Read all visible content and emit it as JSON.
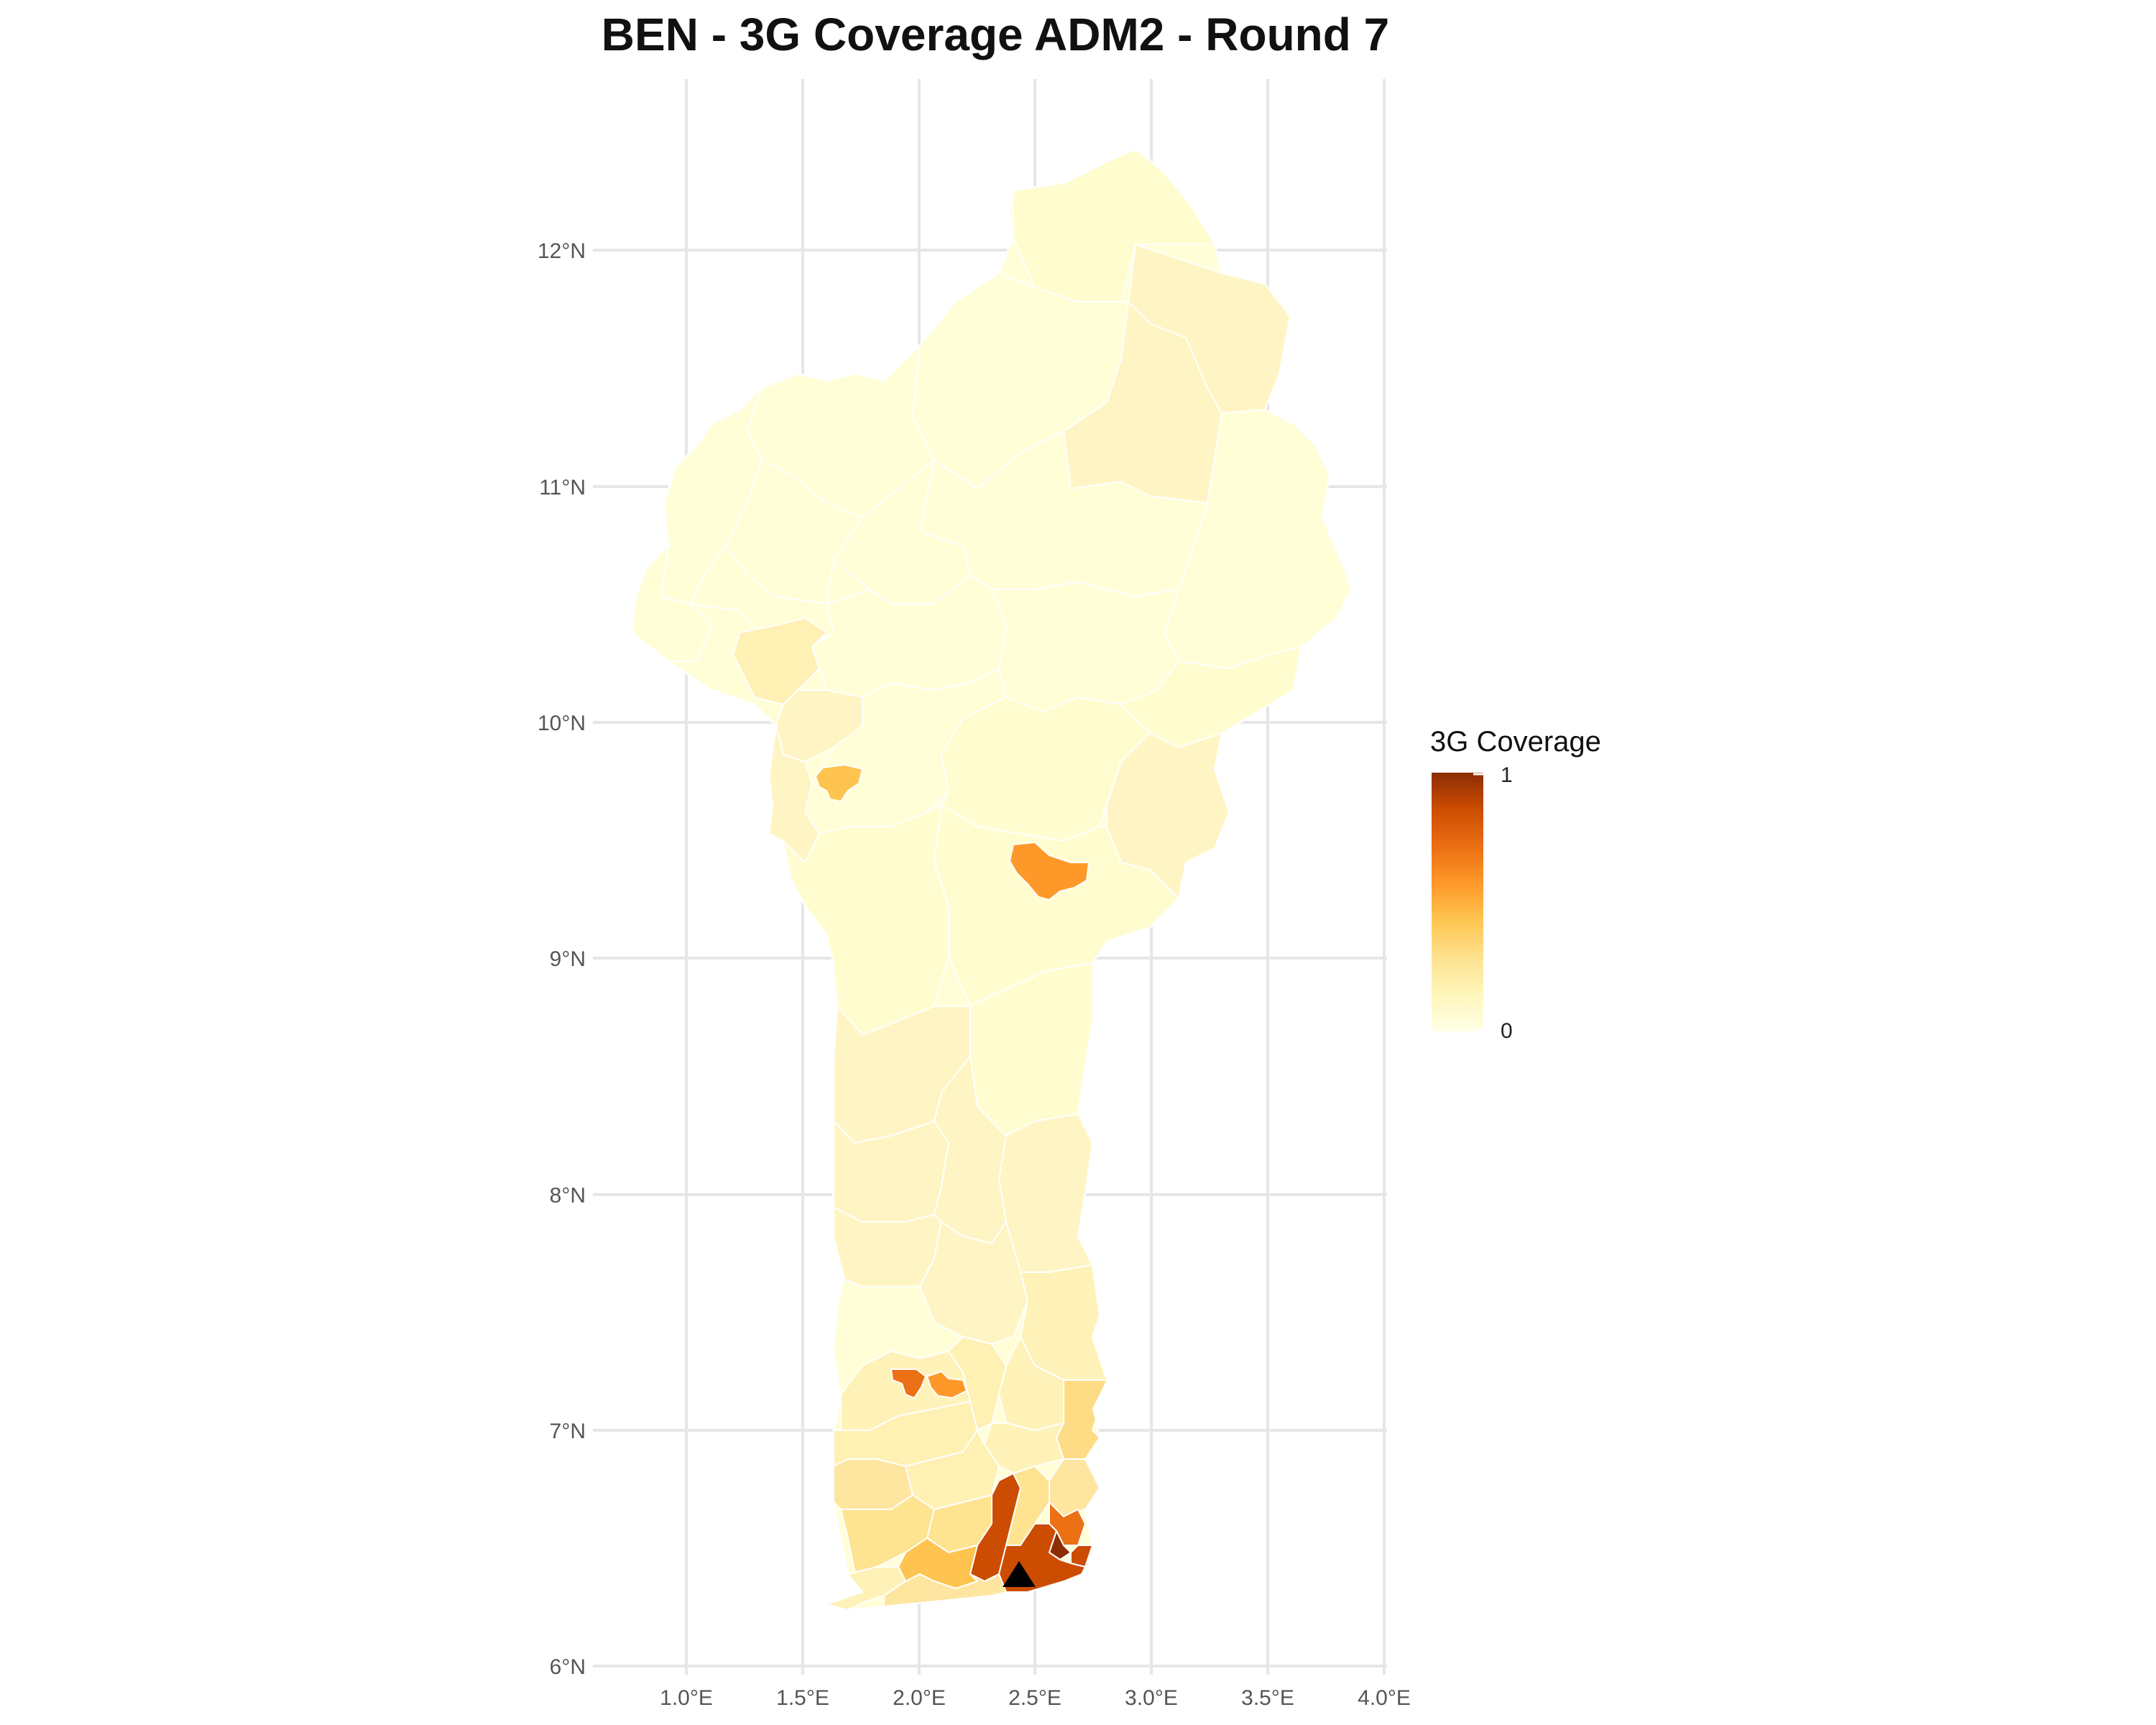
{
  "title": "BEN - 3G Coverage ADM2 - Round 7",
  "x_ticks": [
    "1.0°E",
    "1.5°E",
    "2.0°E",
    "2.5°E",
    "3.0°E",
    "3.5°E",
    "4.0°E"
  ],
  "y_ticks": [
    "12°N",
    "11°N",
    "10°N",
    "9°N",
    "8°N",
    "7°N",
    "6°N"
  ],
  "legend": {
    "title": "3G Coverage",
    "max_label": "1",
    "min_label": "0",
    "colors": [
      "#ffffe5",
      "#fff7bc",
      "#fee391",
      "#fec44f",
      "#fe9929",
      "#ec7014",
      "#cc4c02",
      "#8c2d04"
    ]
  },
  "marker": {
    "symbol": "triangle",
    "lon": 2.43,
    "lat": 6.37
  }
}
